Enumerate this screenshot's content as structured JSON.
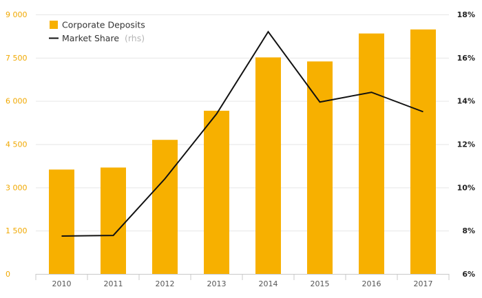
{
  "chart_data": {
    "type": "bar",
    "categories": [
      "2010",
      "2011",
      "2012",
      "2013",
      "2014",
      "2015",
      "2016",
      "2017"
    ],
    "series": [
      {
        "name": "Corporate Deposits",
        "type": "bar",
        "axis": "left",
        "values": [
          3620,
          3690,
          4650,
          5660,
          7510,
          7370,
          8340,
          8480
        ]
      },
      {
        "name": "Market Share",
        "name_suffix": "(rhs)",
        "type": "line",
        "axis": "right",
        "values": [
          7.75,
          7.78,
          10.4,
          13.4,
          17.2,
          13.95,
          14.4,
          13.5
        ]
      }
    ],
    "y_left": {
      "ticks": [
        0,
        1500,
        3000,
        4500,
        6000,
        7500,
        9000
      ],
      "tick_labels": [
        "0",
        "1 500",
        "3 000",
        "4 500",
        "6 000",
        "7 500",
        "9 000"
      ],
      "ylim": [
        0,
        9000
      ]
    },
    "y_right": {
      "ticks": [
        6,
        8,
        10,
        12,
        14,
        16,
        18
      ],
      "tick_labels": [
        "6%",
        "8%",
        "10%",
        "12%",
        "14%",
        "16%",
        "18%"
      ],
      "ylim": [
        6,
        18
      ]
    },
    "legend_position": "top-left",
    "grid": true
  },
  "colors": {
    "bar": "#f7b000",
    "line": "#111111",
    "left_axis_text": "#f0a800",
    "grid": "#e6e6e6"
  }
}
